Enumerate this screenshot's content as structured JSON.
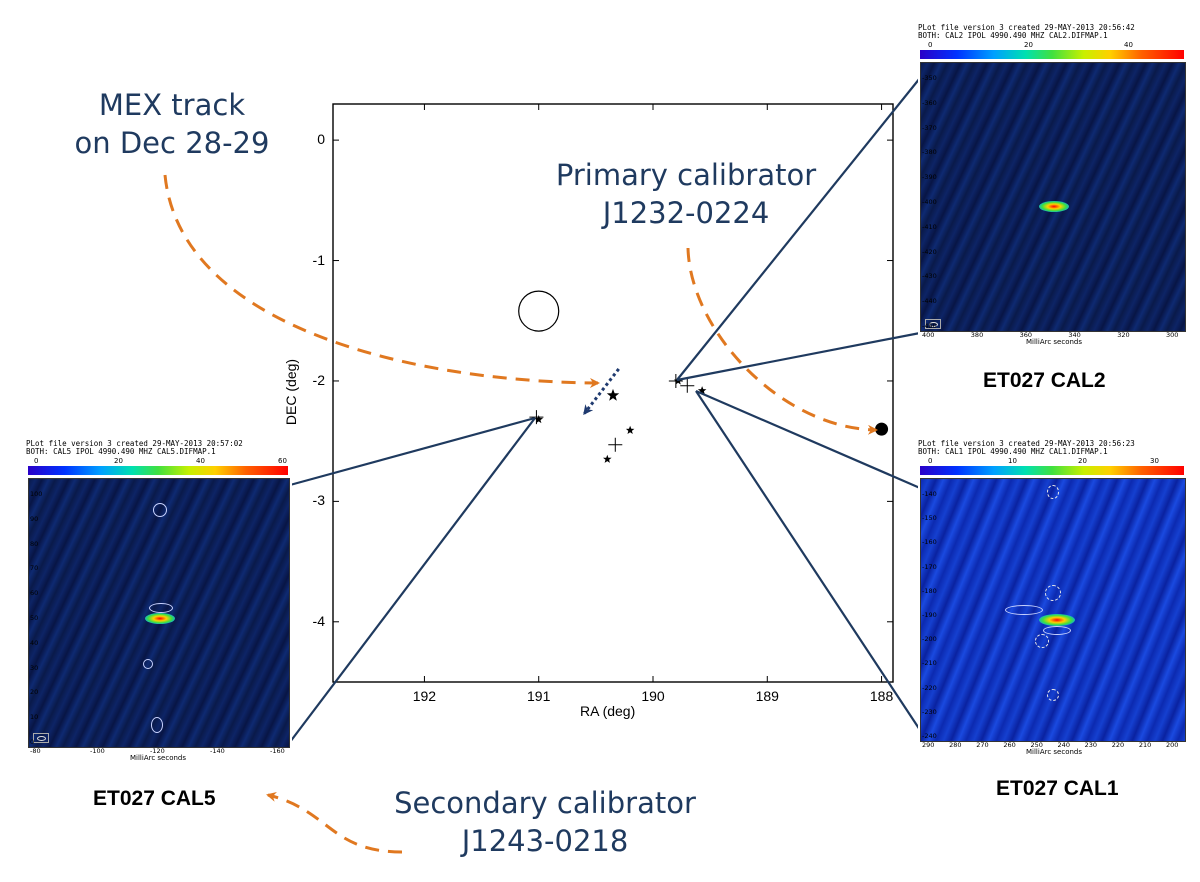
{
  "annotations": {
    "mex_track": [
      "MEX track",
      "on Dec 28-29"
    ],
    "primary": [
      "Primary calibrator",
      "J1232-0224"
    ],
    "secondary": [
      "Secondary calibrator",
      "J1243-0218"
    ]
  },
  "panels": {
    "cal2": {
      "label": "ET027 CAL2",
      "header": [
        "PLot file version 3  created 29-MAY-2013 20:56:42",
        "BOTH: CAL2  IPOL  4990.490 MHZ  CAL2.DIFMAP.1"
      ],
      "colorbar_ticks": [
        "0",
        "20",
        "40"
      ],
      "y_ticks": [
        "-350",
        "-360",
        "-370",
        "-380",
        "-390",
        "-400",
        "-410",
        "-420",
        "-430",
        "-440",
        "-450"
      ],
      "x_ticks": [
        "400",
        "380",
        "360",
        "340",
        "320",
        "300"
      ],
      "x_axis_label": "MilliArc seconds"
    },
    "cal1": {
      "label": "ET027 CAL1",
      "header": [
        "PLot file version 3  created 29-MAY-2013 20:56:23",
        "BOTH: CAL1  IPOL  4990.490 MHZ  CAL1.DIFMAP.1"
      ],
      "colorbar_ticks": [
        "0",
        "10",
        "20",
        "30"
      ],
      "y_ticks": [
        "-140",
        "-150",
        "-160",
        "-170",
        "-180",
        "-190",
        "-200",
        "-210",
        "-220",
        "-230",
        "-240"
      ],
      "x_ticks": [
        "290",
        "280",
        "270",
        "260",
        "250",
        "240",
        "230",
        "220",
        "210",
        "200"
      ],
      "x_axis_label": "MilliArc seconds"
    },
    "cal5": {
      "label": "ET027 CAL5",
      "header": [
        "PLot file version 3  created 29-MAY-2013 20:57:02",
        "BOTH: CAL5  IPOL  4990.490 MHZ  CAL5.DIFMAP.1"
      ],
      "colorbar_ticks": [
        "0",
        "20",
        "40",
        "60"
      ],
      "y_ticks": [
        "100",
        "90",
        "80",
        "70",
        "60",
        "50",
        "40",
        "30",
        "20",
        "10",
        "0"
      ],
      "x_ticks": [
        "-80",
        "-100",
        "-120",
        "-140",
        "-160"
      ],
      "x_axis_label": "MilliArc seconds"
    }
  },
  "chart_data": {
    "type": "scatter",
    "xlabel": "RA (deg)",
    "ylabel": "DEC (deg)",
    "xlim": [
      192.8,
      187.9
    ],
    "ylim": [
      -4.5,
      0.3
    ],
    "x_ticks": [
      192,
      191,
      190,
      189,
      188
    ],
    "y_ticks": [
      0,
      -1,
      -2,
      -3,
      -4
    ],
    "series": [
      {
        "marker": "star",
        "points": [
          [
            190.35,
            -2.12
          ],
          [
            190.2,
            -2.41
          ],
          [
            190.4,
            -2.65
          ],
          [
            191.0,
            -2.32
          ],
          [
            189.78,
            -2.0
          ],
          [
            189.57,
            -2.08
          ]
        ]
      },
      {
        "marker": "plus",
        "points": [
          [
            190.33,
            -2.53
          ],
          [
            189.7,
            -2.04
          ],
          [
            191.02,
            -2.3
          ],
          [
            189.8,
            -2.0
          ]
        ]
      },
      {
        "marker": "circle",
        "points": [
          [
            191.0,
            -1.42
          ]
        ]
      },
      {
        "marker": "filled-circle",
        "points": [
          [
            188.0,
            -2.4
          ]
        ]
      }
    ],
    "mex_track_arrow": {
      "from": [
        190.3,
        -1.9
      ],
      "to": [
        190.6,
        -2.27
      ]
    }
  }
}
